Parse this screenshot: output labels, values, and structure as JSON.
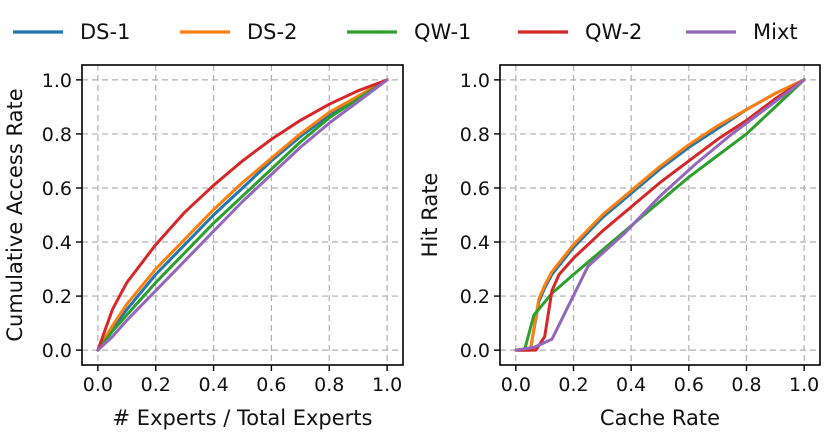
{
  "legend": [
    {
      "name": "DS-1",
      "color": "#1f77b4"
    },
    {
      "name": "DS-2",
      "color": "#ff7f0e"
    },
    {
      "name": "QW-1",
      "color": "#2ca02c"
    },
    {
      "name": "QW-2",
      "color": "#d62728"
    },
    {
      "name": "Mixt",
      "color": "#9467bd"
    }
  ],
  "chart_data": [
    {
      "type": "line",
      "title": "",
      "xlabel": "# Experts / Total Experts",
      "ylabel": "Cumulative Access Rate",
      "xlim": [
        0.0,
        1.0
      ],
      "ylim": [
        0.0,
        1.0
      ],
      "xticks": [
        "0.0",
        "0.2",
        "0.4",
        "0.6",
        "0.8",
        "1.0"
      ],
      "yticks": [
        "0.0",
        "0.2",
        "0.4",
        "0.6",
        "0.8",
        "1.0"
      ],
      "grid": true,
      "x": [
        0.0,
        0.05,
        0.1,
        0.2,
        0.3,
        0.4,
        0.5,
        0.6,
        0.7,
        0.8,
        0.9,
        1.0
      ],
      "series": [
        {
          "name": "DS-1",
          "color": "#1f77b4",
          "values": [
            0.0,
            0.08,
            0.15,
            0.28,
            0.39,
            0.5,
            0.6,
            0.7,
            0.79,
            0.87,
            0.94,
            1.0
          ]
        },
        {
          "name": "DS-2",
          "color": "#ff7f0e",
          "values": [
            0.0,
            0.09,
            0.17,
            0.3,
            0.41,
            0.52,
            0.62,
            0.71,
            0.8,
            0.88,
            0.94,
            1.0
          ]
        },
        {
          "name": "QW-1",
          "color": "#2ca02c",
          "values": [
            0.0,
            0.07,
            0.13,
            0.25,
            0.36,
            0.47,
            0.57,
            0.67,
            0.77,
            0.86,
            0.93,
            1.0
          ]
        },
        {
          "name": "QW-2",
          "color": "#d62728",
          "values": [
            0.0,
            0.15,
            0.25,
            0.39,
            0.51,
            0.61,
            0.7,
            0.78,
            0.85,
            0.91,
            0.96,
            1.0
          ]
        },
        {
          "name": "Mixt",
          "color": "#9467bd",
          "values": [
            0.0,
            0.05,
            0.11,
            0.22,
            0.33,
            0.44,
            0.55,
            0.65,
            0.75,
            0.84,
            0.92,
            1.0
          ]
        }
      ]
    },
    {
      "type": "line",
      "title": "",
      "xlabel": "Cache Rate",
      "ylabel": "Hit Rate",
      "xlim": [
        0.0,
        1.0
      ],
      "ylim": [
        0.0,
        1.0
      ],
      "xticks": [
        "0.0",
        "0.2",
        "0.4",
        "0.6",
        "0.8",
        "1.0"
      ],
      "yticks": [
        "0.0",
        "0.2",
        "0.4",
        "0.6",
        "0.8",
        "1.0"
      ],
      "grid": true,
      "series": [
        {
          "name": "DS-1",
          "color": "#1f77b4",
          "x": [
            0.0,
            0.05,
            0.08,
            0.1,
            0.125,
            0.2,
            0.3,
            0.4,
            0.5,
            0.6,
            0.7,
            0.8,
            0.9,
            1.0
          ],
          "values": [
            0.0,
            0.0,
            0.18,
            0.23,
            0.28,
            0.38,
            0.49,
            0.58,
            0.67,
            0.75,
            0.82,
            0.89,
            0.95,
            1.0
          ]
        },
        {
          "name": "DS-2",
          "color": "#ff7f0e",
          "x": [
            0.0,
            0.05,
            0.08,
            0.1,
            0.125,
            0.2,
            0.3,
            0.4,
            0.5,
            0.6,
            0.7,
            0.8,
            0.9,
            1.0
          ],
          "values": [
            0.0,
            0.0,
            0.19,
            0.24,
            0.29,
            0.39,
            0.5,
            0.59,
            0.68,
            0.76,
            0.83,
            0.89,
            0.95,
            1.0
          ]
        },
        {
          "name": "QW-1",
          "color": "#2ca02c",
          "x": [
            0.0,
            0.03,
            0.0625,
            0.125,
            0.2,
            0.3,
            0.4,
            0.5,
            0.6,
            0.7,
            0.8,
            0.9,
            1.0
          ],
          "values": [
            0.0,
            0.0,
            0.13,
            0.21,
            0.28,
            0.37,
            0.46,
            0.55,
            0.64,
            0.72,
            0.8,
            0.9,
            1.0
          ]
        },
        {
          "name": "QW-2",
          "color": "#d62728",
          "x": [
            0.0,
            0.03,
            0.07,
            0.1,
            0.125,
            0.15,
            0.2,
            0.3,
            0.4,
            0.5,
            0.6,
            0.7,
            0.8,
            0.9,
            1.0
          ],
          "values": [
            0.0,
            0.0,
            0.0,
            0.05,
            0.22,
            0.28,
            0.34,
            0.44,
            0.53,
            0.62,
            0.7,
            0.78,
            0.85,
            0.93,
            1.0
          ]
        },
        {
          "name": "Mixt",
          "color": "#9467bd",
          "x": [
            0.0,
            0.0625,
            0.125,
            0.25,
            0.375,
            0.5,
            0.625,
            0.75,
            0.875,
            1.0
          ],
          "values": [
            0.0,
            0.01,
            0.04,
            0.31,
            0.43,
            0.57,
            0.69,
            0.8,
            0.9,
            1.0
          ]
        }
      ]
    }
  ]
}
